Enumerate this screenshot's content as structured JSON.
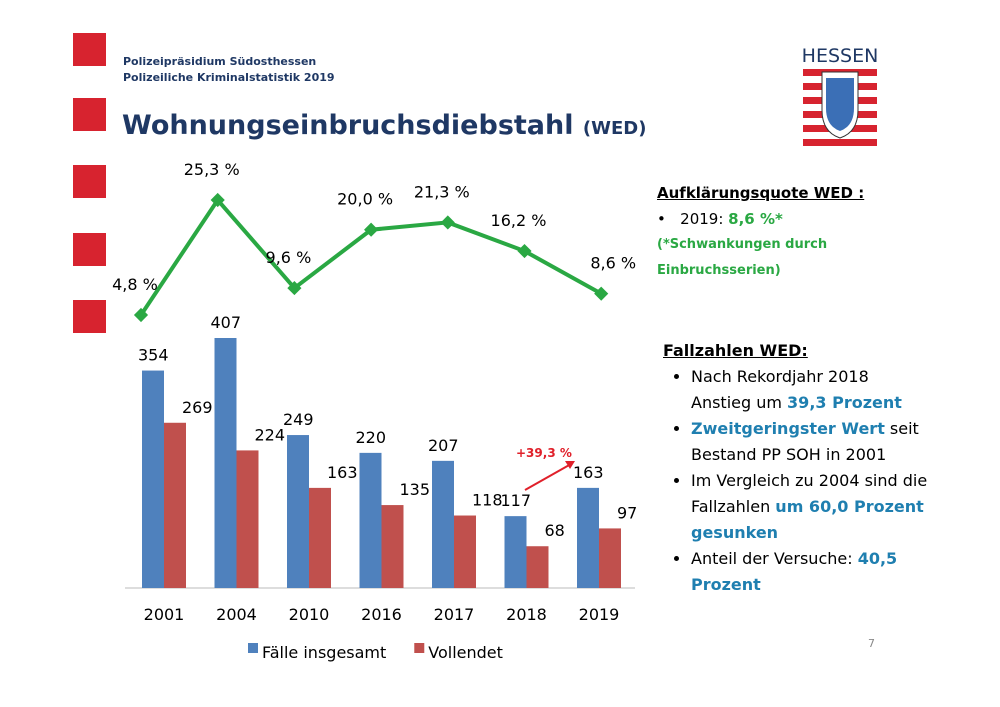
{
  "header": {
    "org": "Polizeipräsidium Südosthessen",
    "subtitle": "Polizeiliche Kriminalstatistik 2019",
    "title": "Wohnungseinbruchsdiebstahl",
    "title_suffix": "(WED)",
    "logo": "HESSEN"
  },
  "chart_data": [
    {
      "type": "bar",
      "categories": [
        "2001",
        "2004",
        "2010",
        "2016",
        "2017",
        "2018",
        "2019"
      ],
      "series": [
        {
          "name": "Fälle insgesamt",
          "color": "#4f81bd",
          "values": [
            354,
            407,
            249,
            220,
            207,
            117,
            163
          ]
        },
        {
          "name": "Vollendet",
          "color": "#c0504d",
          "values": [
            269,
            224,
            163,
            135,
            118,
            68,
            97
          ]
        }
      ],
      "annotation": "+39,3 %",
      "annotation_color": "#e0202a",
      "legend": "bottom"
    },
    {
      "type": "line",
      "color": "#2aa843",
      "values": [
        4.8,
        25.3,
        9.6,
        20.0,
        21.3,
        16.2,
        8.6
      ],
      "value_labels": [
        "4,8 %",
        "25,3 %",
        "9,6 %",
        "20,0 %",
        "21,3 %",
        "16,2 %",
        "8,6 %"
      ]
    }
  ],
  "rate_box": {
    "title": "Aufklärungsquote WED :",
    "year": "2019:",
    "rate": "8,6 %*",
    "note": "(*Schwankungen durch Einbruchsserien)"
  },
  "cases_box": {
    "title": "Fallzahlen WED:",
    "bullets": [
      [
        {
          "text": "Nach Rekordjahr 2018 Anstieg um ",
          "emphasis": false
        },
        {
          "text": "39,3 Prozent",
          "emphasis": true
        }
      ],
      [
        {
          "text": "Zweitgeringster Wert",
          "emphasis": true
        },
        {
          "text": " seit Bestand PP SOH in 2001",
          "emphasis": false
        }
      ],
      [
        {
          "text": "Im Vergleich zu 2004 sind die Fallzahlen ",
          "emphasis": false
        },
        {
          "text": "um 60,0 Prozent gesunken",
          "emphasis": true
        }
      ],
      [
        {
          "text": "Anteil der Versuche: ",
          "emphasis": false
        },
        {
          "text": "40,5 Prozent",
          "emphasis": true
        }
      ]
    ]
  },
  "page_number": "7"
}
